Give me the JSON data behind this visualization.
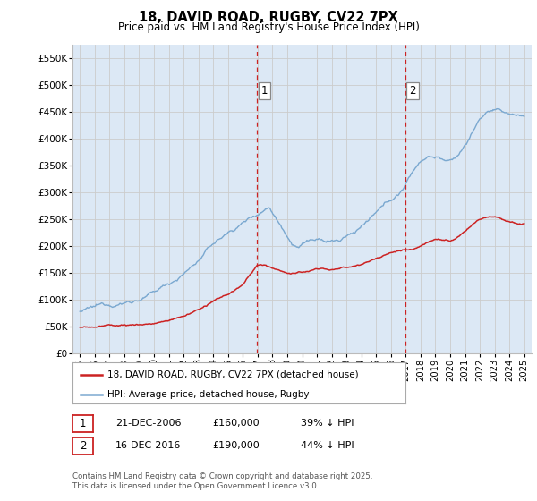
{
  "title": "18, DAVID ROAD, RUGBY, CV22 7PX",
  "subtitle": "Price paid vs. HM Land Registry's House Price Index (HPI)",
  "ylim": [
    0,
    575000
  ],
  "yticks": [
    0,
    50000,
    100000,
    150000,
    200000,
    250000,
    300000,
    350000,
    400000,
    450000,
    500000,
    550000
  ],
  "ytick_labels": [
    "£0",
    "£50K",
    "£100K",
    "£150K",
    "£200K",
    "£250K",
    "£300K",
    "£350K",
    "£400K",
    "£450K",
    "£500K",
    "£550K"
  ],
  "xlim_start": 1994.5,
  "xlim_end": 2025.5,
  "xticks": [
    1995,
    1996,
    1997,
    1998,
    1999,
    2000,
    2001,
    2002,
    2003,
    2004,
    2005,
    2006,
    2007,
    2008,
    2009,
    2010,
    2011,
    2012,
    2013,
    2014,
    2015,
    2016,
    2017,
    2018,
    2019,
    2020,
    2021,
    2022,
    2023,
    2024,
    2025
  ],
  "grid_color": "#cccccc",
  "bg_color": "#dce8f5",
  "hpi_color": "#7aa8d0",
  "price_color": "#cc2222",
  "marker1_x": 2006.97,
  "marker1_y": 490000,
  "marker2_x": 2016.96,
  "marker2_y": 490000,
  "vline_color": "#cc2222",
  "legend_label1": "18, DAVID ROAD, RUGBY, CV22 7PX (detached house)",
  "legend_label2": "HPI: Average price, detached house, Rugby",
  "note1_date": "21-DEC-2006",
  "note1_price": "£160,000",
  "note1_pct": "39% ↓ HPI",
  "note2_date": "16-DEC-2016",
  "note2_price": "£190,000",
  "note2_pct": "44% ↓ HPI",
  "footer": "Contains HM Land Registry data © Crown copyright and database right 2025.\nThis data is licensed under the Open Government Licence v3.0."
}
